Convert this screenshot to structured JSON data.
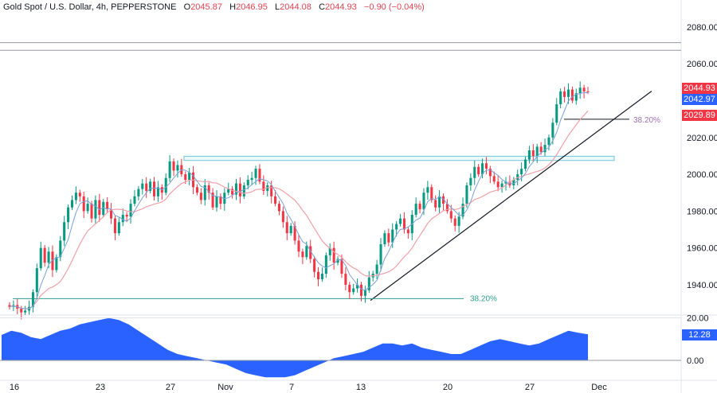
{
  "legend": {
    "symbol": "Gold Spot / U.S. Dollar, 4h, PEPPERSTONE",
    "open_label": "O",
    "open": "2045.87",
    "high_label": "H",
    "high": "2046.95",
    "low_label": "L",
    "low": "2044.08",
    "close_label": "C",
    "close": "2044.93",
    "change": "−0.90 (−0.04%)"
  },
  "price_tags": {
    "last": "2044.93",
    "ma_fast": "2042.97",
    "ma_slow": "2029.89"
  },
  "colors": {
    "up": "#089981",
    "down": "#f23645",
    "ma_fast": "#2962ff",
    "ma_slow": "#f0a0a8",
    "oscillator": "#2962ff",
    "fib_line": "#2e9c8e",
    "resistance_zone": "#6fc8d8",
    "tag_last": "#f23645",
    "tag_ma_fast": "#2962ff",
    "tag_ma_slow": "#f23645"
  },
  "chart_data": [
    {
      "type": "candlestick",
      "title": "Gold Spot / U.S. Dollar, 4h, PEPPERSTONE",
      "y_ticks": [
        "2080.00",
        "2060.00",
        "2040.00",
        "2020.00",
        "2000.00",
        "1980.00",
        "1960.00",
        "1940.00"
      ],
      "ylim": [
        1924,
        2086
      ],
      "x_ticks": [
        "16",
        "23",
        "27",
        "Nov",
        "7",
        "13",
        "20",
        "27",
        "Dec"
      ],
      "approx_close_series": [
        1928,
        1929,
        1927,
        1925,
        1926,
        1928,
        1936,
        1949,
        1960,
        1952,
        1958,
        1948,
        1955,
        1964,
        1974,
        1982,
        1986,
        1990,
        1988,
        1980,
        1984,
        1976,
        1986,
        1978,
        1985,
        1981,
        1976,
        1968,
        1974,
        1978,
        1977,
        1984,
        1988,
        1992,
        1995,
        1991,
        1996,
        1988,
        1993,
        1990,
        1998,
        2007,
        2002,
        2005,
        2000,
        1997,
        2001,
        1993,
        1990,
        1986,
        1994,
        1990,
        1982,
        1988,
        1984,
        1990,
        1992,
        1989,
        1995,
        1988,
        1994,
        1997,
        1998,
        2003,
        1996,
        1991,
        1994,
        1988,
        1984,
        1980,
        1974,
        1968,
        1972,
        1964,
        1958,
        1955,
        1961,
        1954,
        1947,
        1943,
        1946,
        1956,
        1960,
        1952,
        1954,
        1946,
        1940,
        1936,
        1938,
        1940,
        1934,
        1937,
        1944,
        1946,
        1951,
        1962,
        1968,
        1963,
        1970,
        1973,
        1976,
        1970,
        1968,
        1978,
        1984,
        1981,
        1990,
        1993,
        1986,
        1982,
        1988,
        1984,
        1980,
        1976,
        1972,
        1977,
        1984,
        1994,
        1998,
        2004,
        2000,
        2006,
        2003,
        1999,
        1996,
        1993,
        1995,
        1996,
        1994,
        1997,
        2000,
        2003,
        2008,
        2013,
        2010,
        2015,
        2012,
        2016,
        2020,
        2028,
        2038,
        2045,
        2042,
        2046,
        2040,
        2044,
        2047,
        2045,
        2044.93
      ],
      "moving_averages": [
        {
          "value_at_end": 2042.97
        },
        {
          "value_at_end": 2029.89
        }
      ],
      "annotations": [
        {
          "text": "38.20%",
          "price": 2029.89
        },
        {
          "text": "38.20%",
          "price": 1932.5
        }
      ],
      "levels": [
        {
          "kind": "horizontal_line",
          "price": 2071.5
        },
        {
          "kind": "horizontal_line",
          "price": 2067.3
        },
        {
          "kind": "resistance_zone",
          "from": 2007.5,
          "to": 2009.8
        },
        {
          "kind": "trendline",
          "from_price": 1931.5,
          "to_price": 2043
        }
      ]
    },
    {
      "type": "area",
      "title": "",
      "y_ticks": [
        "20.00",
        "0.00"
      ],
      "last_value": "12.28",
      "ylim": [
        -9,
        21
      ],
      "values": [
        12,
        14,
        13,
        11,
        10,
        12,
        14,
        15,
        17,
        18,
        19,
        20,
        19,
        17,
        14,
        11,
        8,
        5,
        3,
        2,
        1,
        0,
        -1,
        -2,
        -4,
        -6,
        -7,
        -8,
        -8,
        -8,
        -7,
        -5,
        -3,
        -1,
        1,
        2,
        3,
        4,
        6,
        8,
        8,
        7,
        8,
        6,
        5,
        4,
        3,
        3,
        5,
        7,
        9,
        10,
        9,
        8,
        7,
        8,
        10,
        12,
        14,
        13,
        12.28
      ]
    }
  ]
}
